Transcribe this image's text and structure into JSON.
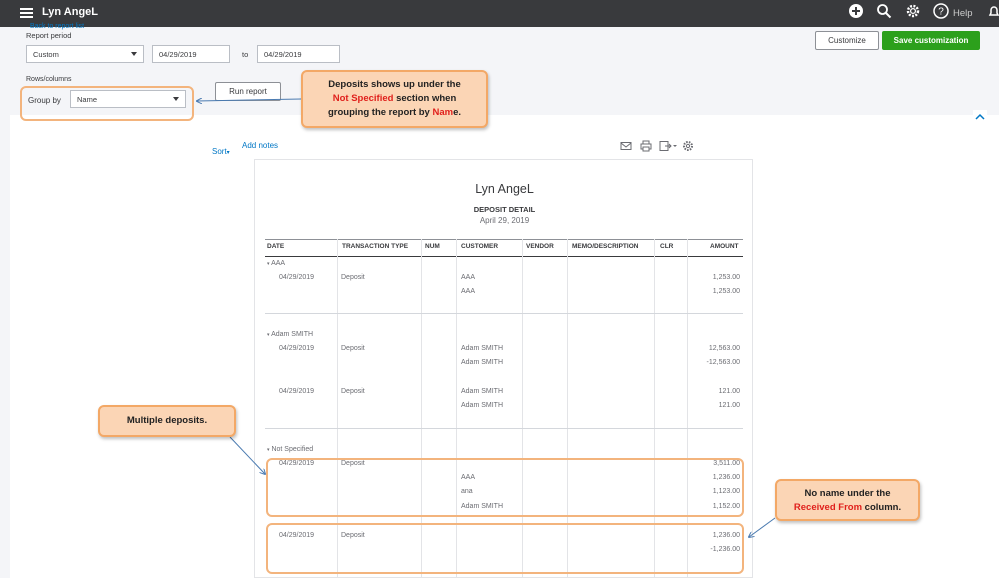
{
  "header": {
    "company": "Lyn AngeL",
    "help_label": "Help",
    "icons": [
      "hamburger-icon",
      "plus-icon",
      "search-icon",
      "gear-icon",
      "help-icon",
      "bell-icon"
    ]
  },
  "filters": {
    "back_link": "Back to report list",
    "period_label": "Report period",
    "period_value": "Custom",
    "from_date": "04/29/2019",
    "to_label": "to",
    "to_date": "04/29/2019",
    "rows_columns_label": "Rows/columns",
    "group_by_label": "Group by",
    "group_by_value": "Name",
    "run_report": "Run report",
    "customize": "Customize",
    "save_customization": "Save customization"
  },
  "toolbar": {
    "sort": "Sort",
    "add_notes": "Add notes"
  },
  "report": {
    "company": "Lyn AngeL",
    "title": "DEPOSIT DETAIL",
    "date": "April 29, 2019",
    "columns": [
      "DATE",
      "TRANSACTION TYPE",
      "NUM",
      "CUSTOMER",
      "VENDOR",
      "MEMO/DESCRIPTION",
      "CLR",
      "AMOUNT"
    ],
    "groups": [
      {
        "name": "AAA",
        "rows": [
          {
            "date": "04/29/2019",
            "type": "Deposit",
            "customer": "AAA",
            "amount": "1,253.00"
          },
          {
            "date": "",
            "type": "",
            "customer": "AAA",
            "amount": "1,253.00"
          }
        ]
      },
      {
        "name": "Adam SMITH",
        "rows": [
          {
            "date": "04/29/2019",
            "type": "Deposit",
            "customer": "Adam SMITH",
            "amount": "12,563.00"
          },
          {
            "date": "",
            "type": "",
            "customer": "Adam SMITH",
            "amount": "-12,563.00"
          },
          {
            "date": "04/29/2019",
            "type": "Deposit",
            "customer": "Adam SMITH",
            "amount": "121.00"
          },
          {
            "date": "",
            "type": "",
            "customer": "Adam SMITH",
            "amount": "121.00"
          }
        ]
      },
      {
        "name": "Not Specified",
        "rows": [
          {
            "date": "04/29/2019",
            "type": "Deposit",
            "customer": "",
            "amount": "3,511.00"
          },
          {
            "date": "",
            "type": "",
            "customer": "AAA",
            "amount": "1,236.00"
          },
          {
            "date": "",
            "type": "",
            "customer": "ana",
            "amount": "1,123.00"
          },
          {
            "date": "",
            "type": "",
            "customer": "Adam SMITH",
            "amount": "1,152.00"
          },
          {
            "date": "04/29/2019",
            "type": "Deposit",
            "customer": "",
            "amount": "1,236.00"
          },
          {
            "date": "",
            "type": "",
            "customer": "",
            "amount": "-1,236.00"
          }
        ]
      }
    ]
  },
  "callouts": {
    "group_note_1": "Deposits shows up under the",
    "group_note_red": "Not Specified",
    "group_note_2": "section when",
    "group_note_3": "grouping the report by",
    "group_note_red2": "Nam",
    "group_note_4": "e.",
    "multiple": "Multiple deposits.",
    "noname_1": "No name under the",
    "noname_red": "Received From",
    "noname_2": "column."
  },
  "colors": {
    "accent_green": "#2ca01c",
    "callout_fill": "#fbd5b5",
    "callout_border": "#f3a866",
    "highlight_red": "#e0201c"
  }
}
